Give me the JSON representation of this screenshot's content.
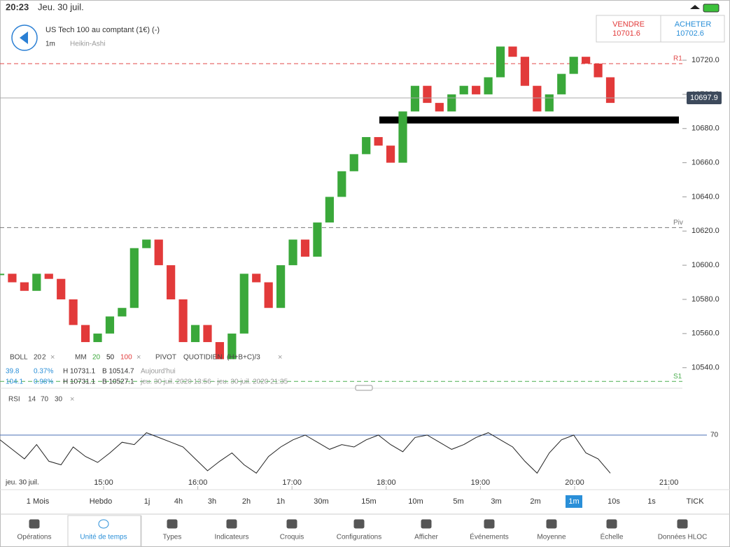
{
  "status": {
    "time": "20:23",
    "date": "Jeu. 30 juil."
  },
  "header": {
    "instrument": "US Tech 100 au comptant (1€) (-)",
    "interval": "1m",
    "chart_type": "Heikin-Ashi"
  },
  "quotes": {
    "sell_label": "VENDRE",
    "sell": 10701.6,
    "buy_label": "ACHETER",
    "buy": 10702.6
  },
  "chart": {
    "ylim": [
      10528,
      10745
    ],
    "yticks": [
      {
        "value": 10720,
        "label": "10720.0"
      },
      {
        "value": 10700,
        "label": "10700.0"
      },
      {
        "value": 10680,
        "label": "10680.0"
      },
      {
        "value": 10660,
        "label": "10660.0"
      },
      {
        "value": 10640,
        "label": "10640.0"
      },
      {
        "value": 10620,
        "label": "10620.0"
      },
      {
        "value": 10600,
        "label": "10600.0"
      },
      {
        "value": 10580,
        "label": "10580.0"
      },
      {
        "value": 10560,
        "label": "10560.0"
      },
      {
        "value": 10540,
        "label": "10540.0"
      }
    ],
    "last_price": 10697.9,
    "support": 10685,
    "levels": [
      {
        "label": "R1",
        "value": 10718,
        "color": "#e04848"
      },
      {
        "label": "Piv",
        "value": 10622,
        "color": "#777777"
      },
      {
        "label": "S1",
        "value": 10532,
        "color": "#4caf50"
      }
    ],
    "close": [
      10595,
      10590,
      10585,
      10595,
      10592,
      10580,
      10565,
      10555,
      10560,
      10570,
      10575,
      10610,
      10615,
      10600,
      10580,
      10555,
      10565,
      10555,
      10545,
      10560,
      10595,
      10590,
      10575,
      10600,
      10615,
      10605,
      10625,
      10640,
      10655,
      10665,
      10675,
      10670,
      10660,
      10690,
      10705,
      10695,
      10690,
      10700,
      10705,
      10700,
      10710,
      10728,
      10722,
      10705,
      10690,
      10700,
      10712,
      10722,
      10718,
      10710,
      10695
    ],
    "xticks": [
      "15:00",
      "16:00",
      "17:00",
      "18:00",
      "19:00",
      "20:00",
      "21:00"
    ],
    "date_label": "jeu. 30 juil."
  },
  "indicators": {
    "boll": [
      "BOLL",
      "20",
      "2"
    ],
    "mm": [
      "MM",
      "20",
      "50",
      "100"
    ],
    "pivot": [
      "PIVOT",
      "QUOTIDIEN",
      "(H+B+C)/3"
    ],
    "row1": [
      "39.8",
      "0.37%",
      "H 10731.1",
      "B 10514.7",
      "Aujourd'hui"
    ],
    "row2": [
      "104.1",
      "0.98%",
      "H 10731.1",
      "B 10527.1",
      "jeu. 30 juil. 2020 13:56 - jeu. 30 juil. 2020 21:35"
    ],
    "close_mark": "×"
  },
  "rsi": {
    "title": [
      "RSI",
      "14",
      "70",
      "30"
    ],
    "ylim": [
      20,
      100
    ],
    "level": 70,
    "values": [
      66,
      58,
      50,
      62,
      48,
      45,
      60,
      52,
      47,
      55,
      64,
      62,
      72,
      68,
      64,
      60,
      50,
      40,
      48,
      55,
      45,
      38,
      52,
      60,
      66,
      70,
      64,
      58,
      62,
      60,
      66,
      70,
      62,
      56,
      68,
      70,
      64,
      58,
      62,
      68,
      72,
      66,
      60,
      48,
      38,
      55,
      66,
      70,
      55,
      50,
      38
    ]
  },
  "timeframes": {
    "items": [
      "1 Mois",
      "Hebdo",
      "1j",
      "4h",
      "3h",
      "2h",
      "1h",
      "30m",
      "15m",
      "10m",
      "5m",
      "3m",
      "2m",
      "1m",
      "10s",
      "1s",
      "TICK"
    ],
    "selected_index": 13
  },
  "tabs": {
    "items": [
      "Opérations",
      "Unité de temps",
      "Types",
      "Indicateurs",
      "Croquis",
      "Configurations",
      "Afficher",
      "Événements",
      "Moyenne",
      "Échelle",
      "Données HLOC"
    ],
    "selected_index": 1
  }
}
